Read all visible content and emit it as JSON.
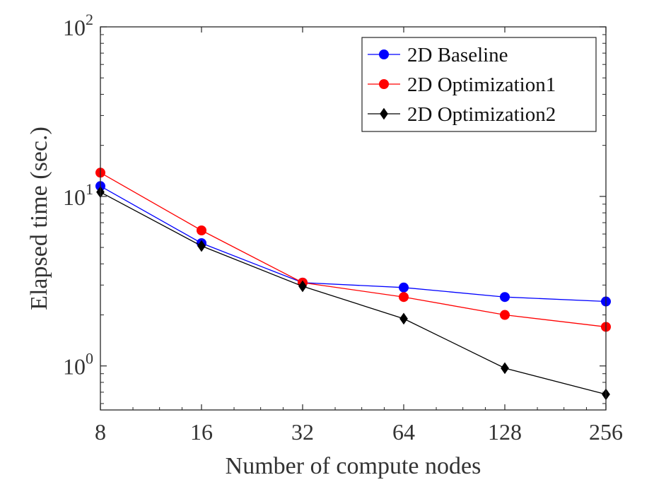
{
  "chart_data": {
    "type": "line",
    "title": "",
    "xlabel": "Number of compute nodes",
    "ylabel": "Elapsed time (sec.)",
    "x": [
      8,
      16,
      32,
      64,
      128,
      256
    ],
    "x_tick_labels": [
      "8",
      "16",
      "32",
      "64",
      "128",
      "256"
    ],
    "y_scale": "log",
    "ylim": [
      0.55,
      100
    ],
    "y_ticks": [
      {
        "value": 1,
        "base": "10",
        "exp": "0"
      },
      {
        "value": 10,
        "base": "10",
        "exp": "1"
      },
      {
        "value": 100,
        "base": "10",
        "exp": "2"
      }
    ],
    "legend_position": "top-right",
    "series": [
      {
        "name": "2D Baseline",
        "color": "#0000ff",
        "marker": "circle",
        "values": [
          11.5,
          5.3,
          3.1,
          2.9,
          2.55,
          2.4
        ]
      },
      {
        "name": "2D Optimization1",
        "color": "#ff0000",
        "marker": "circle",
        "values": [
          13.8,
          6.3,
          3.1,
          2.55,
          2.0,
          1.7
        ]
      },
      {
        "name": "2D Optimization2",
        "color": "#000000",
        "marker": "diamond",
        "values": [
          10.6,
          5.1,
          2.95,
          1.9,
          0.97,
          0.68
        ]
      }
    ]
  }
}
